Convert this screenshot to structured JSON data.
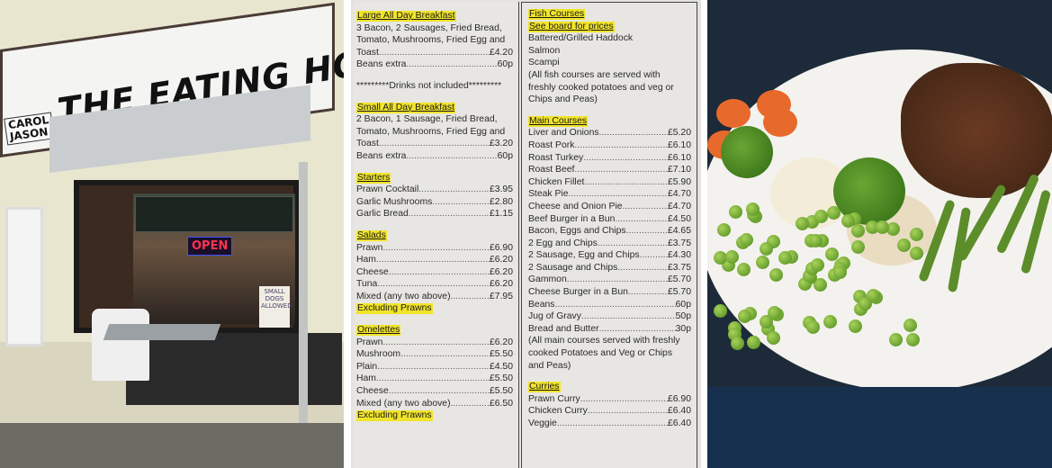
{
  "storefront": {
    "sign_title": "THE EATING HOUSE",
    "sign_names": [
      "CAROL",
      "JASON"
    ],
    "open_sign": "OPEN",
    "window_notice": "SMALL DOGS ALLOWED"
  },
  "menu": {
    "left": [
      {
        "heading": "Large All Day Breakfast",
        "desc": [
          "3 Bacon, 2 Sausages, Fried Bread,",
          "Tomato, Mushrooms, Fried Egg and"
        ],
        "items": [
          {
            "name": "Toast",
            "price": "£4.20"
          },
          {
            "name": "Beans extra",
            "price": "60p"
          }
        ]
      },
      {
        "note": "*********Drinks not included*********"
      },
      {
        "heading": "Small All Day Breakfast",
        "desc": [
          "2 Bacon, 1 Sausage, Fried Bread,",
          "Tomato, Mushrooms, Fried Egg and"
        ],
        "items": [
          {
            "name": "Toast",
            "price": "£3.20"
          },
          {
            "name": "Beans extra",
            "price": "60p"
          }
        ]
      },
      {
        "heading": "Starters",
        "items": [
          {
            "name": "Prawn Cocktail",
            "price": "£3.95"
          },
          {
            "name": "Garlic Mushrooms",
            "price": "£2.80"
          },
          {
            "name": "Garlic Bread",
            "price": "£1.15"
          }
        ]
      },
      {
        "heading": "Salads",
        "items": [
          {
            "name": "Prawn",
            "price": "£6.90"
          },
          {
            "name": "Ham",
            "price": "£6.20"
          },
          {
            "name": "Cheese",
            "price": "£6.20"
          },
          {
            "name": "Tuna",
            "price": "£6.20"
          },
          {
            "name": "Mixed (any two above)",
            "price": "£7.95"
          }
        ],
        "footer": "Excluding Prawns"
      },
      {
        "heading": "Omelettes",
        "items": [
          {
            "name": "Prawn",
            "price": "£6.20"
          },
          {
            "name": "Mushroom",
            "price": "£5.50"
          },
          {
            "name": "Plain",
            "price": "£4.50"
          },
          {
            "name": "Ham",
            "price": "£5.50"
          },
          {
            "name": "Cheese",
            "price": "£5.50"
          },
          {
            "name": "Mixed (any two above)",
            "price": "£6.50"
          }
        ],
        "footer": "Excluding Prawns"
      }
    ],
    "right": [
      {
        "heading": "Fish Courses",
        "subheading": "See board for prices",
        "desc": [
          "Battered/Grilled Haddock",
          "Salmon",
          "Scampi",
          "(All fish courses are served with",
          "freshly cooked potatoes and veg or",
          "Chips and Peas)"
        ]
      },
      {
        "heading": "Main Courses",
        "items": [
          {
            "name": "Liver and Onions",
            "price": "£5.20"
          },
          {
            "name": "Roast Pork",
            "price": "£6.10"
          },
          {
            "name": "Roast Turkey",
            "price": "£6.10"
          },
          {
            "name": "Roast Beef",
            "price": "£7.10"
          },
          {
            "name": "Chicken Fillet",
            "price": "£5.90"
          },
          {
            "name": "Steak Pie",
            "price": "£4.70"
          },
          {
            "name": "Cheese and Onion Pie",
            "price": "£4.70"
          },
          {
            "name": "Beef Burger in a Bun",
            "price": "£4.50"
          },
          {
            "name": "Bacon, Eggs and Chips",
            "price": "£4.65"
          },
          {
            "name": "2 Egg and Chips",
            "price": "£3.75"
          },
          {
            "name": "2 Sausage, Egg and Chips",
            "price": "£4.30"
          },
          {
            "name": "2 Sausage and Chips",
            "price": "£3.75"
          },
          {
            "name": "Gammon",
            "price": "£5.70"
          },
          {
            "name": "Cheese Burger in a Bun",
            "price": "£5.70"
          },
          {
            "name": "Beans",
            "price": "60p"
          },
          {
            "name": "Jug of Gravy",
            "price": "50p"
          },
          {
            "name": "Bread and Butter",
            "price": "30p"
          }
        ],
        "after": [
          "(All main courses served with freshly",
          "cooked Potatoes and Veg or Chips",
          "and Peas)"
        ]
      },
      {
        "heading": "Curries",
        "items": [
          {
            "name": "Prawn Curry",
            "price": "£6.90"
          },
          {
            "name": "Chicken Curry",
            "price": "£6.40"
          },
          {
            "name": "Veggie",
            "price": "£6.40"
          }
        ]
      }
    ]
  },
  "colors": {
    "highlight": "#f1e42a",
    "menu_paper": "#e7e6e2",
    "shop_wall": "#e9e6cf",
    "plate_bg": "#1d2a3a"
  }
}
